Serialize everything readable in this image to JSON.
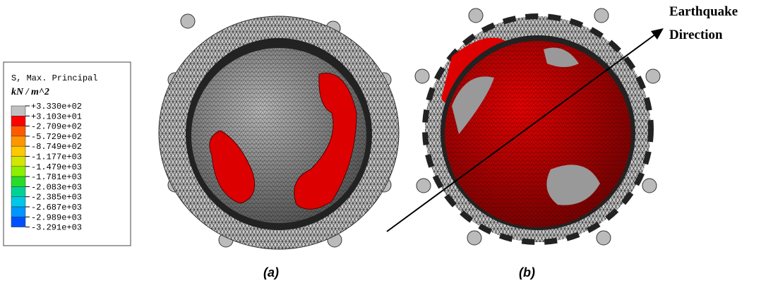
{
  "legend": {
    "title": "S, Max. Principal",
    "unit": "kN / m^2",
    "labels": [
      "+3.330e+02",
      "+3.103e+01",
      "-2.709e+02",
      "-5.729e+02",
      "-8.749e+02",
      "-1.177e+03",
      "-1.479e+03",
      "-1.781e+03",
      "-2.083e+03",
      "-2.385e+03",
      "-2.687e+03",
      "-2.989e+03",
      "-3.291e+03"
    ],
    "colors": [
      "#c0c0c0",
      "#ff0000",
      "#ff5a00",
      "#ff9600",
      "#ffc800",
      "#d2e600",
      "#8cf000",
      "#28dc28",
      "#00d296",
      "#00c8e6",
      "#0096ff",
      "#0050ff",
      "#0000ff"
    ]
  },
  "panels": [
    {
      "label": "(a)"
    },
    {
      "label": "(b)"
    }
  ],
  "annotation": {
    "line1": "Earthquake",
    "line2": "Direction"
  }
}
